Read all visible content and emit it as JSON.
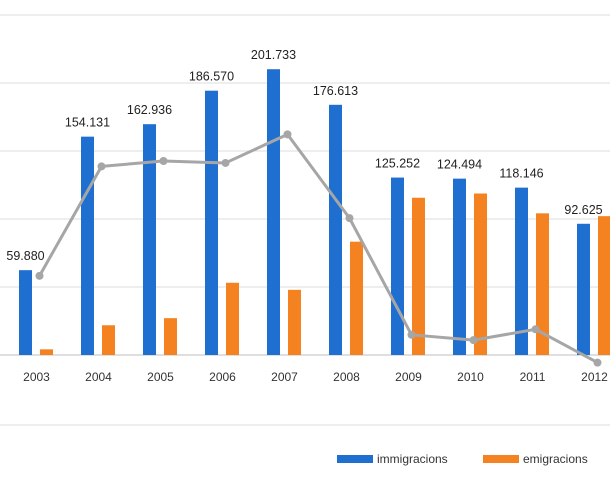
{
  "chart_data": {
    "type": "bar",
    "title": "",
    "xlabel": "",
    "ylabel": "",
    "ylim": [
      0,
      240000
    ],
    "grid": true,
    "legend_position": "bottom-right",
    "categories": [
      "2003",
      "2004",
      "2005",
      "2006",
      "2007",
      "2008",
      "2009",
      "2010",
      "2011",
      "2012"
    ],
    "series": [
      {
        "name": "immigracions",
        "type": "bar",
        "color": "#1f6fd1",
        "values": [
          59880,
          154131,
          162936,
          186570,
          201733,
          176613,
          125252,
          124494,
          118146,
          92625
        ]
      },
      {
        "name": "emigracions",
        "type": "bar",
        "color": "#f58220",
        "values": [
          4000,
          21000,
          26000,
          51000,
          46000,
          80000,
          111000,
          114000,
          100000,
          98000
        ]
      },
      {
        "name": "",
        "type": "line",
        "color": "#a6a6a6",
        "values": [
          55880,
          133131,
          136936,
          135570,
          155733,
          96613,
          14252,
          10494,
          18146,
          -5375
        ]
      }
    ],
    "data_labels": [
      "59.880",
      "154.131",
      "162.936",
      "186.570",
      "201.733",
      "176.613",
      "125.252",
      "124.494",
      "118.146",
      "92.625"
    ]
  }
}
